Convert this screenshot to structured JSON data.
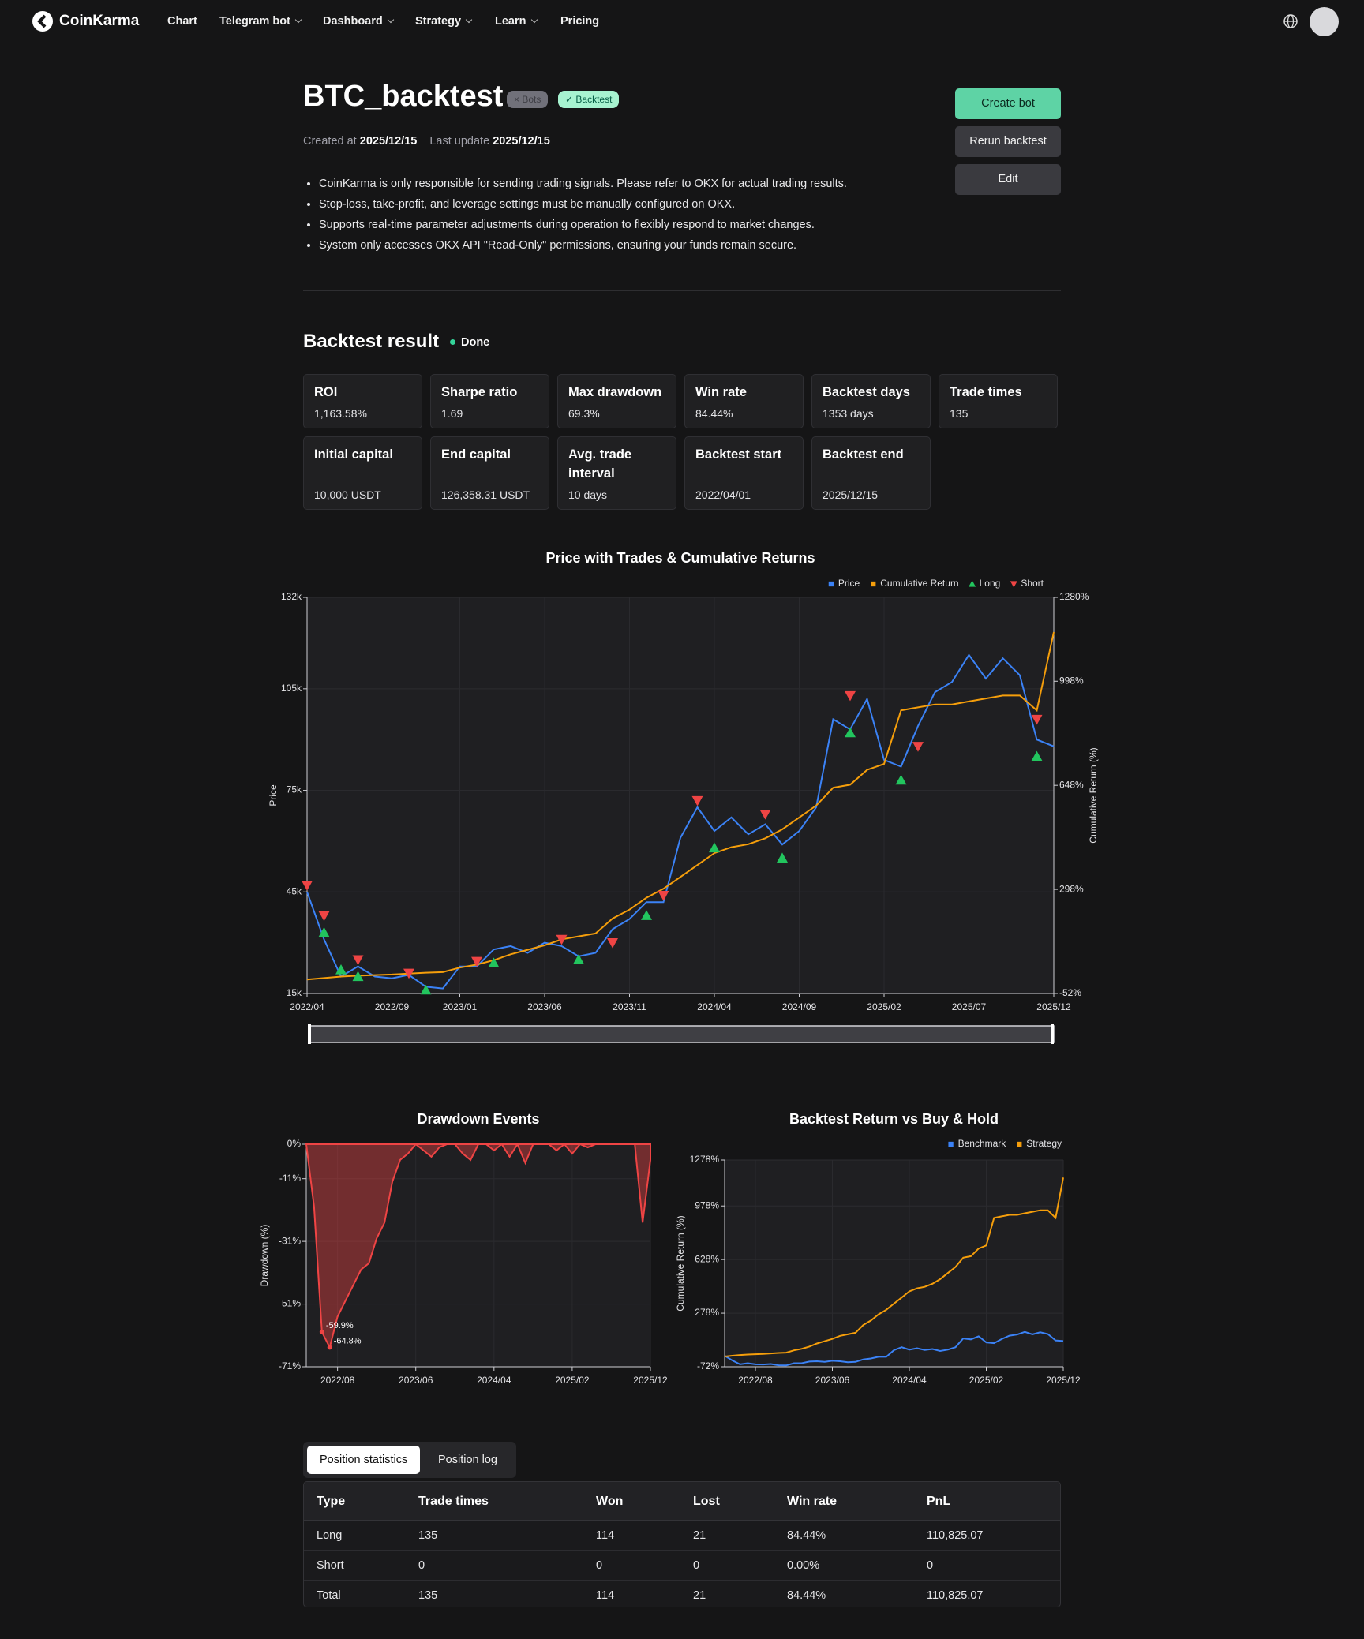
{
  "nav": {
    "brand": "CoinKarma",
    "links": [
      "Chart",
      "Telegram bot",
      "Dashboard",
      "Strategy",
      "Learn",
      "Pricing"
    ]
  },
  "header": {
    "title": "BTC_backtest",
    "tags": [
      "Bots",
      "Backtest"
    ],
    "created_label": "Created at",
    "created": "2025/12/15",
    "updated_label": "Last update",
    "updated": "2025/12/15",
    "buttons": [
      "Create bot",
      "Rerun backtest",
      "Edit"
    ]
  },
  "notes": [
    "CoinKarma is only responsible for sending trading signals. Please refer to OKX for actual trading results.",
    "Stop-loss, take-profit, and leverage settings must be manually configured on OKX.",
    "Supports real-time parameter adjustments during operation to flexibly respond to market changes.",
    "System only accesses OKX API \"Read-Only\" permissions, ensuring your funds remain secure."
  ],
  "result": {
    "title": "Backtest result",
    "status": "Done",
    "metrics": [
      {
        "label": "ROI",
        "value": "1,163.58%"
      },
      {
        "label": "Sharpe ratio",
        "value": "1.69"
      },
      {
        "label": "Max drawdown",
        "value": "69.3%"
      },
      {
        "label": "Win rate",
        "value": "84.44%"
      },
      {
        "label": "Backtest days",
        "value": "1353 days"
      },
      {
        "label": "Trade times",
        "value": "135"
      },
      {
        "label": "Initial capital",
        "value": "10,000 USDT"
      },
      {
        "label": "End capital",
        "value": "126,358.31 USDT"
      },
      {
        "label": "Avg. trade interval",
        "value": "10 days"
      },
      {
        "label": "Backtest start",
        "value": "2022/04/01"
      },
      {
        "label": "Backtest end",
        "value": "2025/12/15"
      }
    ]
  },
  "chart_data": [
    {
      "type": "line",
      "title": "Price with Trades & Cumulative Returns",
      "ylabel": "Price",
      "y2label": "Cumulative Return (%)",
      "legend": "top-right",
      "grid": true,
      "x": [
        "2022/04",
        "2022/05",
        "2022/06",
        "2022/07",
        "2022/08",
        "2022/09",
        "2022/10",
        "2022/11",
        "2022/12",
        "2023/01",
        "2023/02",
        "2023/03",
        "2023/04",
        "2023/05",
        "2023/06",
        "2023/07",
        "2023/08",
        "2023/09",
        "2023/10",
        "2023/11",
        "2023/12",
        "2024/01",
        "2024/02",
        "2024/03",
        "2024/04",
        "2024/05",
        "2024/06",
        "2024/07",
        "2024/08",
        "2024/09",
        "2024/10",
        "2024/11",
        "2024/12",
        "2025/01",
        "2025/02",
        "2025/03",
        "2025/04",
        "2025/05",
        "2025/06",
        "2025/07",
        "2025/08",
        "2025/09",
        "2025/10",
        "2025/11",
        "2025/12"
      ],
      "xticks": [
        "2022/04",
        "2022/09",
        "2023/01",
        "2023/06",
        "2023/11",
        "2024/04",
        "2024/09",
        "2025/02",
        "2025/07",
        "2025/12"
      ],
      "ylim": [
        15000,
        132000
      ],
      "yticks": [
        {
          "value": 15000,
          "label": "15k"
        },
        {
          "value": 45000,
          "label": "45k"
        },
        {
          "value": 75000,
          "label": "75k"
        },
        {
          "value": 105000,
          "label": "105k"
        },
        {
          "value": 132000,
          "label": "132k"
        }
      ],
      "y2lim": [
        -52,
        1280
      ],
      "y2ticks": [
        {
          "value": -52,
          "label": "-52%"
        },
        {
          "value": 298,
          "label": "298%"
        },
        {
          "value": 648,
          "label": "648%"
        },
        {
          "value": 998,
          "label": "998%"
        },
        {
          "value": 1280,
          "label": "1280%"
        }
      ],
      "series": [
        {
          "name": "Price",
          "color": "#3b82f6",
          "marker": "square",
          "values": [
            45000,
            31000,
            20000,
            23000,
            20000,
            19500,
            20500,
            17000,
            16500,
            23000,
            23000,
            28000,
            29000,
            27000,
            30000,
            29000,
            26000,
            27000,
            34000,
            37000,
            42000,
            42000,
            61000,
            70000,
            63000,
            67000,
            62000,
            65000,
            59000,
            63000,
            70000,
            96000,
            93000,
            102000,
            84000,
            82000,
            94000,
            104000,
            107000,
            115000,
            108000,
            114000,
            109000,
            90000,
            88000
          ]
        },
        {
          "name": "Cumulative Return",
          "color": "#f59e0b",
          "marker": "square",
          "axis": "y2",
          "values": [
            -5,
            0,
            5,
            8,
            10,
            12,
            15,
            18,
            20,
            35,
            45,
            60,
            80,
            95,
            110,
            130,
            140,
            150,
            200,
            230,
            270,
            300,
            340,
            380,
            420,
            440,
            450,
            470,
            500,
            540,
            580,
            640,
            650,
            700,
            720,
            900,
            910,
            920,
            920,
            930,
            940,
            950,
            950,
            900,
            1163
          ]
        },
        {
          "name": "Long",
          "color": "#22c55e",
          "type": "scatter",
          "marker": "triangle-up",
          "x": [
            "2022/05",
            "2022/06",
            "2022/07",
            "2022/11",
            "2023/03",
            "2023/08",
            "2023/12",
            "2024/04",
            "2024/08",
            "2024/12",
            "2025/03",
            "2025/11"
          ],
          "values": [
            33000,
            22000,
            20000,
            16000,
            24000,
            25000,
            38000,
            58000,
            55000,
            92000,
            78000,
            85000
          ]
        },
        {
          "name": "Short",
          "color": "#ef4444",
          "type": "scatter",
          "marker": "triangle-down",
          "x": [
            "2022/04",
            "2022/05",
            "2022/07",
            "2022/10",
            "2023/02",
            "2023/07",
            "2023/10",
            "2024/01",
            "2024/03",
            "2024/07",
            "2024/12",
            "2025/04",
            "2025/11"
          ],
          "values": [
            47000,
            38000,
            25000,
            21000,
            24500,
            31000,
            30000,
            44000,
            72000,
            68000,
            103000,
            88000,
            96000
          ]
        }
      ]
    },
    {
      "type": "area",
      "title": "Drawdown Events",
      "ylabel": "Drawdown (%)",
      "grid": true,
      "x": [
        "2022/04",
        "2022/05",
        "2022/06",
        "2022/07",
        "2022/08",
        "2022/09",
        "2022/10",
        "2022/11",
        "2022/12",
        "2023/01",
        "2023/02",
        "2023/03",
        "2023/04",
        "2023/05",
        "2023/06",
        "2023/07",
        "2023/08",
        "2023/09",
        "2023/10",
        "2023/11",
        "2023/12",
        "2024/01",
        "2024/02",
        "2024/03",
        "2024/04",
        "2024/05",
        "2024/06",
        "2024/07",
        "2024/08",
        "2024/09",
        "2024/10",
        "2024/11",
        "2024/12",
        "2025/01",
        "2025/02",
        "2025/03",
        "2025/04",
        "2025/05",
        "2025/06",
        "2025/07",
        "2025/08",
        "2025/09",
        "2025/10",
        "2025/11",
        "2025/12"
      ],
      "xticks": [
        "2022/08",
        "2023/06",
        "2024/04",
        "2025/02",
        "2025/12"
      ],
      "ylim": [
        -71,
        0
      ],
      "yticks": [
        {
          "value": -71,
          "label": "-71%"
        },
        {
          "value": -51,
          "label": "-51%"
        },
        {
          "value": -31,
          "label": "-31%"
        },
        {
          "value": -11,
          "label": "-11%"
        },
        {
          "value": 0,
          "label": "0%"
        }
      ],
      "series": [
        {
          "color": "#ef4444",
          "values": [
            0,
            -20,
            -59.9,
            -64.8,
            -55,
            -50,
            -45,
            -40,
            -38,
            -30,
            -25,
            -12,
            -5,
            -3,
            0,
            -2,
            -4,
            -1,
            0,
            0,
            -3,
            -5,
            0,
            0,
            -2,
            0,
            -4,
            0,
            -6,
            0,
            0,
            0,
            -2,
            0,
            -3,
            0,
            -1,
            0,
            0,
            0,
            0,
            0,
            0,
            -25,
            -5
          ]
        }
      ],
      "annotations": [
        {
          "text": "-59.9%",
          "x": "2022/06",
          "y": -59.9
        },
        {
          "text": "-64.8%",
          "x": "2022/07",
          "y": -64.8
        }
      ]
    },
    {
      "type": "line",
      "title": "Backtest Return vs Buy & Hold",
      "ylabel": "Cumulative Return (%)",
      "legend": "top-right",
      "grid": true,
      "x": [
        "2022/04",
        "2022/05",
        "2022/06",
        "2022/07",
        "2022/08",
        "2022/09",
        "2022/10",
        "2022/11",
        "2022/12",
        "2023/01",
        "2023/02",
        "2023/03",
        "2023/04",
        "2023/05",
        "2023/06",
        "2023/07",
        "2023/08",
        "2023/09",
        "2023/10",
        "2023/11",
        "2023/12",
        "2024/01",
        "2024/02",
        "2024/03",
        "2024/04",
        "2024/05",
        "2024/06",
        "2024/07",
        "2024/08",
        "2024/09",
        "2024/10",
        "2024/11",
        "2024/12",
        "2025/01",
        "2025/02",
        "2025/03",
        "2025/04",
        "2025/05",
        "2025/06",
        "2025/07",
        "2025/08",
        "2025/09",
        "2025/10",
        "2025/11",
        "2025/12"
      ],
      "xticks": [
        "2022/08",
        "2023/06",
        "2024/04",
        "2025/02",
        "2025/12"
      ],
      "ylim": [
        -72,
        1278
      ],
      "yticks": [
        {
          "value": -72,
          "label": "-72%"
        },
        {
          "value": 278,
          "label": "278%"
        },
        {
          "value": 628,
          "label": "628%"
        },
        {
          "value": 978,
          "label": "978%"
        },
        {
          "value": 1278,
          "label": "1278%"
        }
      ],
      "series": [
        {
          "name": "Benchmark",
          "color": "#3b82f6",
          "marker": "square",
          "values": [
            0,
            -31,
            -56,
            -49,
            -56,
            -57,
            -54,
            -62,
            -63,
            -49,
            -49,
            -38,
            -36,
            -40,
            -33,
            -36,
            -42,
            -40,
            -24,
            -18,
            -7,
            -7,
            36,
            56,
            40,
            49,
            38,
            44,
            31,
            40,
            56,
            113,
            107,
            127,
            87,
            82,
            109,
            131,
            138,
            156,
            140,
            153,
            142,
            100,
            96
          ]
        },
        {
          "name": "Strategy",
          "color": "#f59e0b",
          "marker": "square",
          "values": [
            -5,
            0,
            5,
            8,
            10,
            12,
            15,
            18,
            20,
            35,
            45,
            60,
            80,
            95,
            110,
            130,
            140,
            150,
            200,
            230,
            270,
            300,
            340,
            380,
            420,
            440,
            450,
            470,
            500,
            540,
            580,
            640,
            650,
            700,
            720,
            900,
            910,
            920,
            920,
            930,
            940,
            950,
            950,
            900,
            1163
          ]
        }
      ]
    }
  ],
  "tabs": [
    "Position statistics",
    "Position log"
  ],
  "table": {
    "columns": [
      "Type",
      "Trade times",
      "Won",
      "Lost",
      "Win rate",
      "PnL"
    ],
    "rows": [
      [
        "Long",
        "135",
        "114",
        "21",
        "84.44%",
        "110,825.07"
      ],
      [
        "Short",
        "0",
        "0",
        "0",
        "0.00%",
        "0"
      ],
      [
        "Total",
        "135",
        "114",
        "21",
        "84.44%",
        "110,825.07"
      ]
    ]
  }
}
